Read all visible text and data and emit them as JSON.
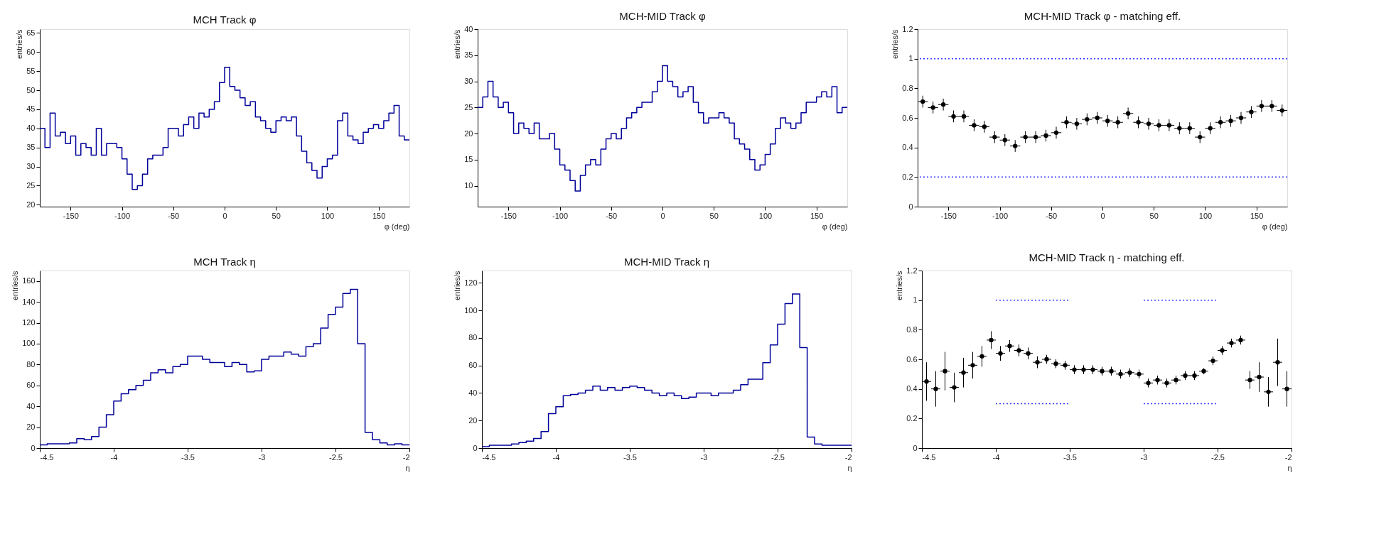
{
  "chart_data": [
    {
      "type": "histogram",
      "title": "MCH Track φ",
      "xlabel": "φ (deg)",
      "ylabel": "entries/s",
      "color": "#000099",
      "grid": false,
      "bins": [
        -180,
        -175,
        -170,
        -165,
        -160,
        -155,
        -150,
        -145,
        -140,
        -135,
        -130,
        -125,
        -120,
        -115,
        -110,
        -105,
        -100,
        -95,
        -90,
        -85,
        -80,
        -75,
        -70,
        -65,
        -60,
        -55,
        -50,
        -45,
        -40,
        -35,
        -30,
        -25,
        -20,
        -15,
        -10,
        -5,
        0,
        5,
        10,
        15,
        20,
        25,
        30,
        35,
        40,
        45,
        50,
        55,
        60,
        65,
        70,
        75,
        80,
        85,
        90,
        95,
        100,
        105,
        110,
        115,
        120,
        125,
        130,
        135,
        140,
        145,
        150,
        155,
        160,
        165,
        170,
        175,
        180
      ],
      "values": [
        40,
        35,
        44,
        38,
        39,
        36,
        38,
        33,
        36,
        35,
        33,
        40,
        33,
        36,
        36,
        35,
        32,
        28,
        24,
        25,
        28,
        32,
        33,
        33,
        35,
        40,
        40,
        38,
        41,
        43,
        40,
        44,
        43,
        45,
        47,
        52,
        56,
        51,
        50,
        48,
        46,
        47,
        43,
        42,
        40,
        39,
        42,
        43,
        42,
        43,
        38,
        34,
        31,
        29,
        27,
        30,
        32,
        33,
        42,
        44,
        38,
        37,
        36,
        39,
        40,
        41,
        40,
        42,
        44,
        46,
        38,
        37
      ],
      "xlim": [
        -180,
        180
      ],
      "xticks": [
        -150,
        -100,
        -50,
        0,
        50,
        100,
        150
      ],
      "ylim": [
        19.5,
        66
      ],
      "yticks": [
        20,
        25,
        30,
        35,
        40,
        45,
        50,
        55,
        60,
        65
      ]
    },
    {
      "type": "histogram",
      "title": "MCH-MID Track φ",
      "xlabel": "φ (deg)",
      "ylabel": "entries/s",
      "color": "#000099",
      "grid": false,
      "bins": [
        -180,
        -175,
        -170,
        -165,
        -160,
        -155,
        -150,
        -145,
        -140,
        -135,
        -130,
        -125,
        -120,
        -115,
        -110,
        -105,
        -100,
        -95,
        -90,
        -85,
        -80,
        -75,
        -70,
        -65,
        -60,
        -55,
        -50,
        -45,
        -40,
        -35,
        -30,
        -25,
        -20,
        -15,
        -10,
        -5,
        0,
        5,
        10,
        15,
        20,
        25,
        30,
        35,
        40,
        45,
        50,
        55,
        60,
        65,
        70,
        75,
        80,
        85,
        90,
        95,
        100,
        105,
        110,
        115,
        120,
        125,
        130,
        135,
        140,
        145,
        150,
        155,
        160,
        165,
        170,
        175,
        180
      ],
      "values": [
        25,
        27,
        30,
        27,
        25,
        26,
        24,
        20,
        22,
        21,
        20,
        22,
        19,
        19,
        20,
        17,
        14,
        13,
        11,
        9,
        12,
        14,
        15,
        14,
        17,
        19,
        20,
        19,
        21,
        23,
        24,
        25,
        26,
        26,
        28,
        30,
        33,
        30,
        29,
        27,
        28,
        29,
        26,
        24,
        22,
        23,
        23,
        24,
        23,
        22,
        19,
        18,
        17,
        15,
        13,
        14,
        16,
        18,
        21,
        23,
        22,
        21,
        22,
        24,
        26,
        26,
        27,
        28,
        27,
        29,
        24,
        25
      ],
      "xlim": [
        -180,
        180
      ],
      "xticks": [
        -150,
        -100,
        -50,
        0,
        50,
        100,
        150
      ],
      "ylim": [
        6,
        40
      ],
      "yticks": [
        10,
        15,
        20,
        25,
        30,
        35,
        40
      ]
    },
    {
      "type": "scatter",
      "title": "MCH-MID Track φ - matching eff.",
      "xlabel": "φ (deg)",
      "ylabel": "entries/s",
      "grid": false,
      "x": [
        -175,
        -165,
        -155,
        -145,
        -135,
        -125,
        -115,
        -105,
        -95,
        -85,
        -75,
        -65,
        -55,
        -45,
        -35,
        -25,
        -15,
        -5,
        5,
        15,
        25,
        35,
        45,
        55,
        65,
        75,
        85,
        95,
        105,
        115,
        125,
        135,
        145,
        155,
        165,
        175
      ],
      "series": [
        {
          "type": "scatter",
          "color": "#000000",
          "marker": "circle",
          "values": [
            0.71,
            0.67,
            0.69,
            0.61,
            0.61,
            0.55,
            0.54,
            0.47,
            0.45,
            0.41,
            0.47,
            0.47,
            0.48,
            0.5,
            0.57,
            0.56,
            0.59,
            0.6,
            0.58,
            0.57,
            0.63,
            0.57,
            0.56,
            0.55,
            0.55,
            0.53,
            0.53,
            0.47,
            0.53,
            0.57,
            0.58,
            0.6,
            0.64,
            0.68,
            0.68,
            0.65
          ],
          "errors": [
            0.04,
            0.04,
            0.04,
            0.04,
            0.04,
            0.04,
            0.04,
            0.04,
            0.04,
            0.04,
            0.04,
            0.04,
            0.04,
            0.04,
            0.04,
            0.04,
            0.04,
            0.04,
            0.04,
            0.04,
            0.04,
            0.04,
            0.04,
            0.04,
            0.04,
            0.04,
            0.04,
            0.04,
            0.04,
            0.04,
            0.04,
            0.04,
            0.04,
            0.04,
            0.04,
            0.04
          ],
          "xerrors": [
            5,
            5,
            5,
            5,
            5,
            5,
            5,
            5,
            5,
            5,
            5,
            5,
            5,
            5,
            5,
            5,
            5,
            5,
            5,
            5,
            5,
            5,
            5,
            5,
            5,
            5,
            5,
            5,
            5,
            5,
            5,
            5,
            5,
            5,
            5,
            5
          ]
        }
      ],
      "ref_lines": [
        {
          "axis": "y",
          "value": 1,
          "color": "#3333ff",
          "line_style": "dotted"
        },
        {
          "axis": "y",
          "value": 0.2,
          "color": "#3333ff",
          "line_style": "dotted"
        }
      ],
      "xlim": [
        -180,
        180
      ],
      "xticks": [
        -150,
        -100,
        -50,
        0,
        50,
        100,
        150
      ],
      "ylim": [
        0,
        1.2
      ],
      "yticks": [
        0,
        0.2,
        0.4,
        0.6,
        0.8,
        1,
        1.2
      ]
    },
    {
      "type": "histogram",
      "title": "MCH Track η",
      "xlabel": "η",
      "ylabel": "entries/s",
      "color": "#000099",
      "grid": false,
      "bins": [
        -4.5,
        -4.45,
        -4.4,
        -4.35,
        -4.3,
        -4.25,
        -4.2,
        -4.15,
        -4.1,
        -4.05,
        -4.0,
        -3.95,
        -3.9,
        -3.85,
        -3.8,
        -3.75,
        -3.7,
        -3.65,
        -3.6,
        -3.55,
        -3.5,
        -3.45,
        -3.4,
        -3.35,
        -3.3,
        -3.25,
        -3.2,
        -3.15,
        -3.1,
        -3.05,
        -3.0,
        -2.95,
        -2.9,
        -2.85,
        -2.8,
        -2.75,
        -2.7,
        -2.65,
        -2.6,
        -2.55,
        -2.5,
        -2.45,
        -2.4,
        -2.35,
        -2.3,
        -2.25,
        -2.2,
        -2.15,
        -2.1,
        -2.05,
        -2.0
      ],
      "values": [
        3,
        4,
        4,
        4,
        5,
        9,
        8,
        11,
        20,
        32,
        45,
        52,
        56,
        60,
        65,
        72,
        75,
        72,
        78,
        80,
        88,
        88,
        85,
        82,
        82,
        78,
        82,
        80,
        73,
        74,
        85,
        88,
        88,
        92,
        90,
        88,
        97,
        100,
        115,
        128,
        135,
        148,
        152,
        100,
        15,
        8,
        5,
        3,
        4,
        3
      ],
      "xlim": [
        -4.5,
        -2
      ],
      "xticks": [
        -4.5,
        -4,
        -3.5,
        -3,
        -2.5,
        -2
      ],
      "ylim": [
        0,
        170
      ],
      "yticks": [
        0,
        20,
        40,
        60,
        80,
        100,
        120,
        140,
        160
      ]
    },
    {
      "type": "histogram",
      "title": "MCH-MID Track η",
      "xlabel": "η",
      "ylabel": "entries/s",
      "color": "#000099",
      "grid": false,
      "bins": [
        -4.5,
        -4.45,
        -4.4,
        -4.35,
        -4.3,
        -4.25,
        -4.2,
        -4.15,
        -4.1,
        -4.05,
        -4.0,
        -3.95,
        -3.9,
        -3.85,
        -3.8,
        -3.75,
        -3.7,
        -3.65,
        -3.6,
        -3.55,
        -3.5,
        -3.45,
        -3.4,
        -3.35,
        -3.3,
        -3.25,
        -3.2,
        -3.15,
        -3.1,
        -3.05,
        -3.0,
        -2.95,
        -2.9,
        -2.85,
        -2.8,
        -2.75,
        -2.7,
        -2.65,
        -2.6,
        -2.55,
        -2.5,
        -2.45,
        -2.4,
        -2.35,
        -2.3,
        -2.25,
        -2.2,
        -2.15,
        -2.1,
        -2.05,
        -2.0
      ],
      "values": [
        1,
        2,
        2,
        2,
        3,
        4,
        5,
        7,
        12,
        25,
        30,
        38,
        39,
        40,
        42,
        45,
        42,
        44,
        42,
        44,
        45,
        44,
        42,
        40,
        38,
        40,
        38,
        36,
        37,
        40,
        40,
        38,
        40,
        40,
        42,
        46,
        50,
        50,
        62,
        75,
        90,
        105,
        112,
        73,
        8,
        3,
        2,
        2,
        2,
        2
      ],
      "xlim": [
        -4.5,
        -2
      ],
      "xticks": [
        -4.5,
        -4,
        -3.5,
        -3,
        -2.5,
        -2
      ],
      "ylim": [
        0,
        129
      ],
      "yticks": [
        0,
        20,
        40,
        60,
        80,
        100,
        120
      ]
    },
    {
      "type": "scatter",
      "title": "MCH-MID Track η - matching eff.",
      "xlabel": "η",
      "ylabel": "entries/s",
      "grid": false,
      "x": [
        -4.46875,
        -4.40625,
        -4.34375,
        -4.28125,
        -4.21875,
        -4.15625,
        -4.09375,
        -4.03125,
        -3.96875,
        -3.90625,
        -3.84375,
        -3.78125,
        -3.71875,
        -3.65625,
        -3.59375,
        -3.53125,
        -3.46875,
        -3.40625,
        -3.34375,
        -3.28125,
        -3.21875,
        -3.15625,
        -3.09375,
        -3.03125,
        -2.96875,
        -2.90625,
        -2.84375,
        -2.78125,
        -2.71875,
        -2.65625,
        -2.59375,
        -2.53125,
        -2.46875,
        -2.40625,
        -2.34375,
        -2.28125,
        -2.21875,
        -2.15625,
        -2.09375,
        -2.03125
      ],
      "series": [
        {
          "type": "scatter",
          "color": "#000000",
          "marker": "circle",
          "values": [
            0.45,
            0.4,
            0.52,
            0.41,
            0.51,
            0.56,
            0.62,
            0.73,
            0.64,
            0.69,
            0.66,
            0.64,
            0.58,
            0.6,
            0.57,
            0.56,
            0.53,
            0.53,
            0.53,
            0.52,
            0.52,
            0.5,
            0.51,
            0.5,
            0.44,
            0.46,
            0.44,
            0.46,
            0.49,
            0.49,
            0.52,
            0.59,
            0.66,
            0.71,
            0.73,
            0.46,
            0.48,
            0.38,
            0.58,
            0.4
          ],
          "errors": [
            0.13,
            0.12,
            0.13,
            0.1,
            0.1,
            0.09,
            0.07,
            0.06,
            0.05,
            0.04,
            0.04,
            0.04,
            0.04,
            0.03,
            0.03,
            0.03,
            0.03,
            0.03,
            0.03,
            0.03,
            0.03,
            0.03,
            0.03,
            0.03,
            0.03,
            0.03,
            0.03,
            0.03,
            0.03,
            0.03,
            0.02,
            0.03,
            0.03,
            0.03,
            0.03,
            0.06,
            0.1,
            0.1,
            0.16,
            0.12
          ],
          "xerrors": [
            0.03125,
            0.03125,
            0.03125,
            0.03125,
            0.03125,
            0.03125,
            0.03125,
            0.03125,
            0.03125,
            0.03125,
            0.03125,
            0.03125,
            0.03125,
            0.03125,
            0.03125,
            0.03125,
            0.03125,
            0.03125,
            0.03125,
            0.03125,
            0.03125,
            0.03125,
            0.03125,
            0.03125,
            0.03125,
            0.03125,
            0.03125,
            0.03125,
            0.03125,
            0.03125,
            0.03125,
            0.03125,
            0.03125,
            0.03125,
            0.03125,
            0.03125,
            0.03125,
            0.03125,
            0.03125,
            0.03125
          ]
        },
        {
          "type": "line",
          "color": "#3333ff",
          "line_style": "dotted",
          "x": [
            -4,
            -3.5
          ],
          "values": [
            1,
            1
          ]
        },
        {
          "type": "line",
          "color": "#3333ff",
          "line_style": "dotted",
          "x": [
            -3,
            -2.5
          ],
          "values": [
            1,
            1
          ]
        },
        {
          "type": "line",
          "color": "#3333ff",
          "line_style": "dotted",
          "x": [
            -4,
            -3.5
          ],
          "values": [
            0.3,
            0.3
          ]
        },
        {
          "type": "line",
          "color": "#3333ff",
          "line_style": "dotted",
          "x": [
            -3,
            -2.5
          ],
          "values": [
            0.3,
            0.3
          ]
        }
      ],
      "xlim": [
        -4.5,
        -2
      ],
      "xticks": [
        -4.5,
        -4,
        -3.5,
        -3,
        -2.5,
        -2
      ],
      "ylim": [
        0,
        1.2
      ],
      "yticks": [
        0,
        0.2,
        0.4,
        0.6,
        0.8,
        1,
        1.2
      ]
    }
  ]
}
